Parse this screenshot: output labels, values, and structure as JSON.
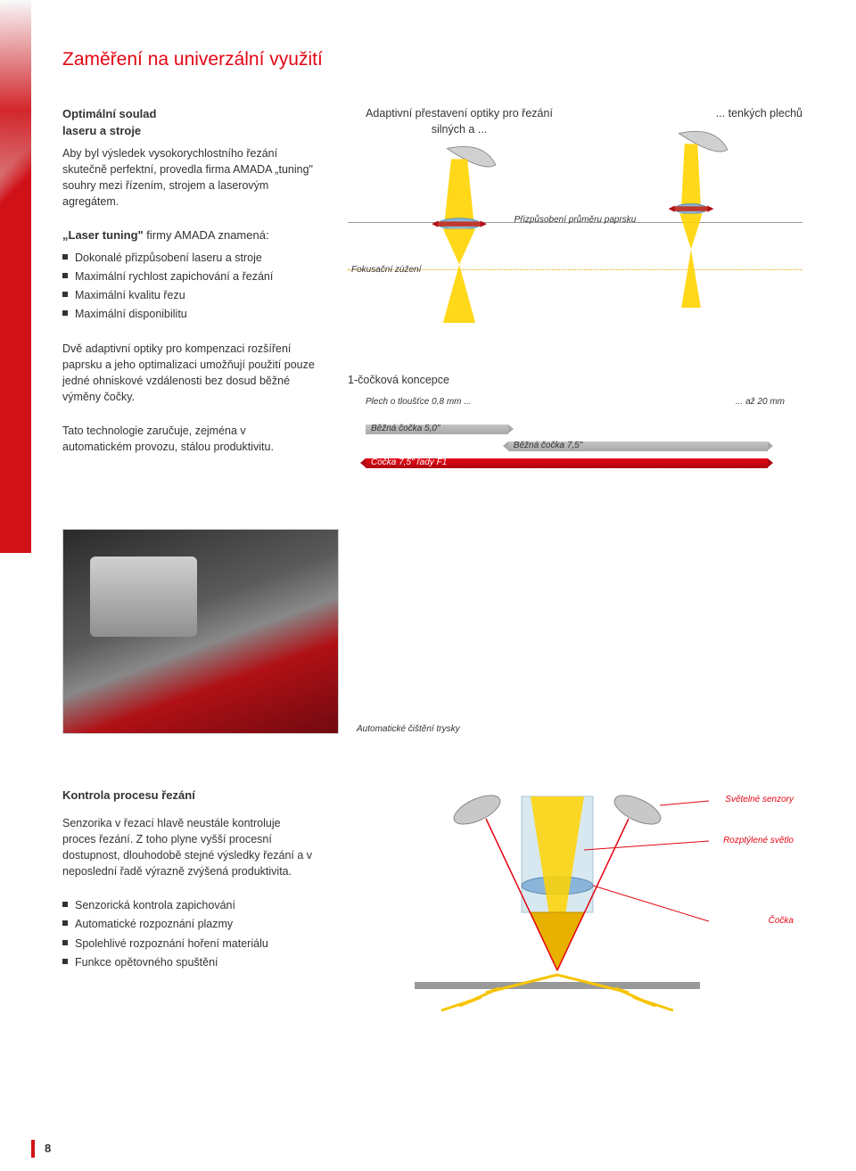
{
  "colors": {
    "accent_red": "#e30613",
    "dark_red": "#b00511",
    "grey_bar": "#a8a8a8",
    "dot_yellow": "#e2a500",
    "sensor_label": "#e30613",
    "text": "#333333"
  },
  "title": "Zaměření na univerzální využití",
  "left_col": {
    "subhead1": "Optimální soulad\nlaseru a stroje",
    "para1": "Aby byl výsledek vysokorychlostního řezání skutečně perfektní, provedla firma AMADA „tuning\" souhry mezi řízením, strojem a laserovým agregátem.",
    "subhead2": "„Laser tuning\" firmy AMADA znamená:",
    "bullets2": [
      "Dokonalé přizpůsobení laseru a stroje",
      "Maximální rychlost zapichování a řezání",
      "Maximální kvalitu řezu",
      "Maximální disponibilitu"
    ],
    "para3": "Dvě adaptivní optiky pro kompenzaci rozšíření paprsku a jeho optimalizaci umožňují použití pouze jedné ohniskové vzdálenosti bez dosud běžné výměny čočky.",
    "para4": "Tato technologie zaručuje, zejména v automatickém provozu, stálou produktivitu."
  },
  "diagram": {
    "caption_left": "Adaptivní přestavení optiky pro řezání silných a ...",
    "caption_right": "... tenkých plechů",
    "center_label": "Přizpůsobení průměru paprsku",
    "focus_label": "Fokusační zúžení"
  },
  "lens_concept": {
    "title": "1-čočková koncepce",
    "range_left": "Plech o tloušťce 0,8 mm ...",
    "range_right": "... až 20 mm",
    "bars": [
      {
        "label": "Běžná čočka 5,0\"",
        "color": "grey",
        "left_pct": 0,
        "width_pct": 34,
        "arrows": "r"
      },
      {
        "label": "Běžná čočka 7,5\"",
        "color": "grey",
        "left_pct": 34,
        "width_pct": 62,
        "arrows": "lr"
      },
      {
        "label": "Čočka 7,5\" řady F1",
        "color": "red",
        "left_pct": 0,
        "width_pct": 96,
        "arrows": "lr"
      }
    ]
  },
  "photo_caption": "Automatické čištění trysky",
  "section2": {
    "subhead": "Kontrola procesu řezání",
    "para": "Senzorika v řezací hlavě neustále kontroluje proces řezání. Z toho plyne vyšší procesní dostupnost, dlouhodobě stejné výsledky řezání a v neposlední řadě výrazně zvýšená produktivita.",
    "bullets": [
      "Senzorická kontrola zapichování",
      "Automatické rozpoznání plazmy",
      "Spolehlivé rozpoznání hoření materiálu",
      "Funkce opětovného spuštění"
    ],
    "labels": {
      "sensors": "Světelné senzory",
      "scattered": "Rozptýlené světlo",
      "lens": "Čočka"
    }
  },
  "page_number": "8"
}
